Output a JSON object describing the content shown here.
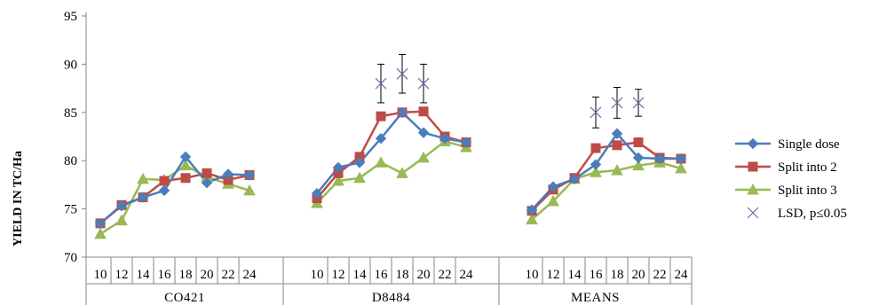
{
  "chart_data": {
    "type": "line",
    "ylabel": "YIELD IN TC/Ha",
    "ylim": [
      70,
      95
    ],
    "yticks": [
      70,
      75,
      80,
      85,
      90,
      95
    ],
    "categories": [
      "10",
      "12",
      "14",
      "16",
      "18",
      "20",
      "22",
      "24"
    ],
    "groups": [
      {
        "name": "CO421",
        "series": {
          "single": [
            73.5,
            75.3,
            76.2,
            76.9,
            80.4,
            77.7,
            78.6,
            78.5
          ],
          "split2": [
            73.5,
            75.4,
            76.2,
            77.9,
            78.2,
            78.7,
            78.0,
            78.5
          ],
          "split3": [
            72.4,
            73.8,
            78.1,
            78.0,
            79.5,
            78.3,
            77.6,
            76.9
          ]
        },
        "lsd": [],
        "lsd_err": []
      },
      {
        "name": "D8484",
        "series": {
          "single": [
            76.6,
            79.3,
            79.8,
            82.3,
            85.0,
            82.9,
            82.3,
            81.9
          ],
          "split2": [
            76.1,
            78.7,
            80.4,
            84.6,
            85.0,
            85.1,
            82.5,
            81.9
          ],
          "split3": [
            75.6,
            77.9,
            78.2,
            79.8,
            78.7,
            80.3,
            82.0,
            81.4
          ]
        },
        "lsd": [
          null,
          null,
          null,
          88.0,
          89.0,
          88.0,
          null,
          null
        ],
        "lsd_err": [
          null,
          null,
          null,
          2.0,
          2.0,
          2.0,
          null,
          null
        ]
      },
      {
        "name": "MEANS",
        "series": {
          "single": [
            74.9,
            77.3,
            78.1,
            79.6,
            82.8,
            80.3,
            80.2,
            80.2
          ],
          "split2": [
            74.8,
            77.0,
            78.2,
            81.3,
            81.6,
            81.9,
            80.3,
            80.2
          ],
          "split3": [
            73.9,
            75.8,
            78.1,
            78.8,
            79.0,
            79.5,
            79.8,
            79.2
          ]
        },
        "lsd": [
          null,
          null,
          null,
          85.0,
          86.0,
          86.0,
          null,
          null
        ],
        "lsd_err": [
          null,
          null,
          null,
          1.6,
          1.6,
          1.4,
          null,
          null
        ]
      }
    ],
    "legend": [
      {
        "key": "single",
        "label": "Single dose",
        "color": "#4a7ebb",
        "marker": "diamond"
      },
      {
        "key": "split2",
        "label": "Split into 2",
        "color": "#be4b48",
        "marker": "square"
      },
      {
        "key": "split3",
        "label": "Split into 3",
        "color": "#98b954",
        "marker": "triangle"
      },
      {
        "key": "lsd",
        "label": "LSD, p≤0.05",
        "color": "#8064a2",
        "marker": "x"
      }
    ],
    "legend_position": "right",
    "grid": false
  }
}
